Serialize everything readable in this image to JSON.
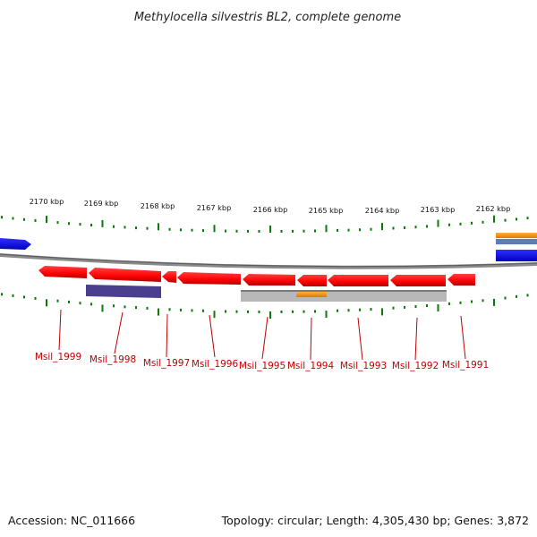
{
  "title": "Methylocella silvestris BL2, complete genome",
  "footer": {
    "accession": "Accession: NC_011666",
    "topology": "Topology: circular; Length: 4,305,430 bp; Genes: 3,872"
  },
  "kbp_labels": [
    "2170 kbp",
    "2169 kbp",
    "2168 kbp",
    "2167 kbp",
    "2166 kbp",
    "2165 kbp",
    "2164 kbp",
    "2163 kbp",
    "2162 kbp"
  ],
  "genes": [
    "Msil_1999",
    "Msil_1998",
    "Msil_1997",
    "Msil_1996",
    "Msil_1995",
    "Msil_1994",
    "Msil_1993",
    "Msil_1992",
    "Msil_1991"
  ],
  "colors": {
    "gene_red": "#ff0000",
    "gene_blue": "#0000ff",
    "gene_orange": "#ff9900",
    "navy_band": "#4a3f8f",
    "gray_band": "#b8b8b8",
    "backbone": "#7a7a7a",
    "tick_green": "#0a7a0a",
    "label_red": "#c00000"
  }
}
